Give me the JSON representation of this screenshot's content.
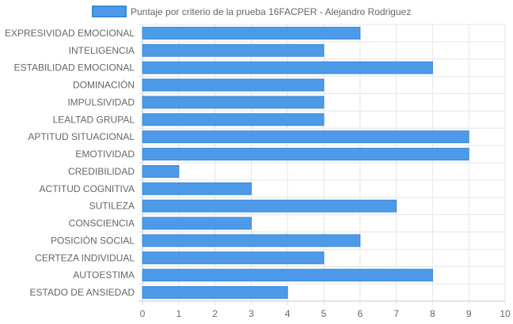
{
  "chart_data": {
    "type": "bar",
    "orientation": "horizontal",
    "categories": [
      "EXPRESIVIDAD EMOCIONAL",
      "INTELIGENCIA",
      "ESTABILIDAD EMOCIONAL",
      "DOMINACIÓN",
      "IMPULSIVIDAD",
      "LEALTAD GRUPAL",
      "APTITUD SITUACIONAL",
      "EMOTIVIDAD",
      "CREDIBILIDAD",
      "ACTITUD COGNITIVA",
      "SUTILEZA",
      "CONSCIENCIA",
      "POSICIÓN SOCIAL",
      "CERTEZA INDIVIDUAL",
      "AUTOESTIMA",
      "ESTADO DE ANSIEDAD"
    ],
    "series": [
      {
        "name": "Puntaje por criterio de la prueba 16FACPER - Alejandro Rodriguez",
        "values": [
          6,
          5,
          8,
          5,
          5,
          5,
          9,
          9,
          1,
          3,
          7,
          3,
          6,
          5,
          8,
          4
        ],
        "color": "#4d9ae9"
      }
    ],
    "xlim": [
      0,
      10
    ],
    "x_ticks": [
      "0",
      "1",
      "2",
      "3",
      "4",
      "5",
      "6",
      "7",
      "8",
      "9",
      "10"
    ],
    "grid": true,
    "legend": "top-center",
    "colors": {
      "bar_fill": "#4d9ae9",
      "bar_border": "#3b88d8",
      "grid": "#e5e5e5",
      "axis": "#c8c8c8",
      "text": "#666666"
    }
  }
}
